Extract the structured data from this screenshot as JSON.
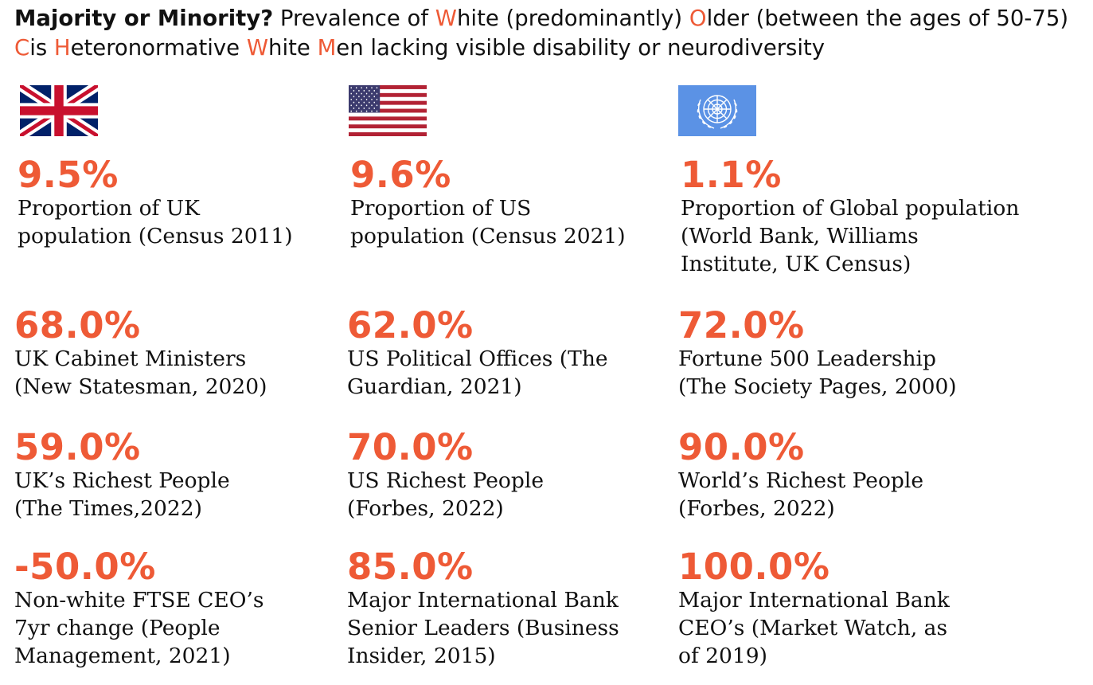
{
  "title": {
    "bold": "Majority or Minority?",
    "text": [
      " Prevalence of ",
      "W",
      "hite (predominantly) ",
      "O",
      "lder (between the ages of 50-75) ",
      "C",
      "is ",
      "H",
      "eteronormative ",
      "W",
      "hite ",
      "M",
      "en lacking visible disability or neurodiversity"
    ]
  },
  "flags": [
    {
      "name": "uk-flag-icon"
    },
    {
      "name": "us-flag-icon"
    },
    {
      "name": "un-flag-icon"
    }
  ],
  "stats": [
    {
      "value": "9.5%",
      "label": "Proportion of UK\npopulation (Census 2011)"
    },
    {
      "value": "9.6%",
      "label": "Proportion of US\npopulation (Census 2021)"
    },
    {
      "value": "1.1%",
      "label": "Proportion of Global population\n(World Bank, Williams\nInstitute, UK Census)"
    },
    {
      "value": "68.0%",
      "label": "UK Cabinet Ministers\n(New Statesman, 2020)"
    },
    {
      "value": "62.0%",
      "label": "US Political Offices (The\nGuardian, 2021)"
    },
    {
      "value": "72.0%",
      "label": "Fortune 500 Leadership\n(The Society Pages, 2000)"
    },
    {
      "value": "59.0%",
      "label": "UK’s Richest People\n(The Times,2022)"
    },
    {
      "value": "70.0%",
      "label": "US Richest People\n(Forbes, 2022)"
    },
    {
      "value": "90.0%",
      "label": "World’s Richest People\n(Forbes, 2022)"
    },
    {
      "value": "-50.0%",
      "label": "Non-white FTSE CEO’s\n7yr change (People\nManagement, 2021)"
    },
    {
      "value": "85.0%",
      "label": "Major International Bank\nSenior Leaders (Business\nInsider, 2015)"
    },
    {
      "value": "100.0%",
      "label": "Major International Bank\nCEO’s (Market Watch, as\nof 2019)"
    }
  ],
  "colors": {
    "accent": "#ee5a36",
    "text": "#111111",
    "un_blue": "#5b92e5"
  }
}
